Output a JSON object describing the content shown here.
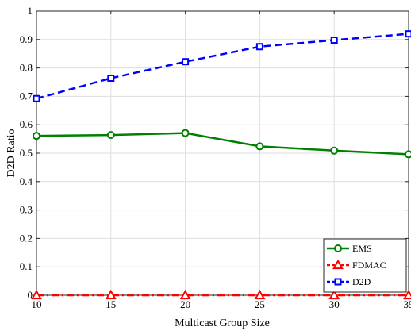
{
  "chart_data": {
    "type": "line",
    "title": "",
    "xlabel": "Multicast Group Size",
    "ylabel": "D2D Ratio",
    "x": [
      10,
      15,
      20,
      25,
      30,
      35
    ],
    "xlim": [
      10,
      35
    ],
    "ylim": [
      0,
      1
    ],
    "xticks": [
      "10",
      "15",
      "20",
      "25",
      "30",
      "35"
    ],
    "yticks": [
      "0",
      "0.1",
      "0.2",
      "0.3",
      "0.4",
      "0.5",
      "0.6",
      "0.7",
      "0.8",
      "0.9",
      "1"
    ],
    "grid": true,
    "legend_position": "bottom-right",
    "series": [
      {
        "name": "EMS",
        "values": [
          0.561,
          0.564,
          0.571,
          0.524,
          0.509,
          0.496
        ],
        "color": "#008000",
        "line": "solid",
        "marker": "circle"
      },
      {
        "name": "FDMAC",
        "values": [
          0.0,
          0.0,
          0.0,
          0.0,
          0.0,
          0.0
        ],
        "color": "#ff0000",
        "line": "dashdot",
        "marker": "triangle"
      },
      {
        "name": "D2D",
        "values": [
          0.692,
          0.764,
          0.822,
          0.875,
          0.898,
          0.92
        ],
        "color": "#0000ff",
        "line": "dashed",
        "marker": "square"
      }
    ]
  }
}
